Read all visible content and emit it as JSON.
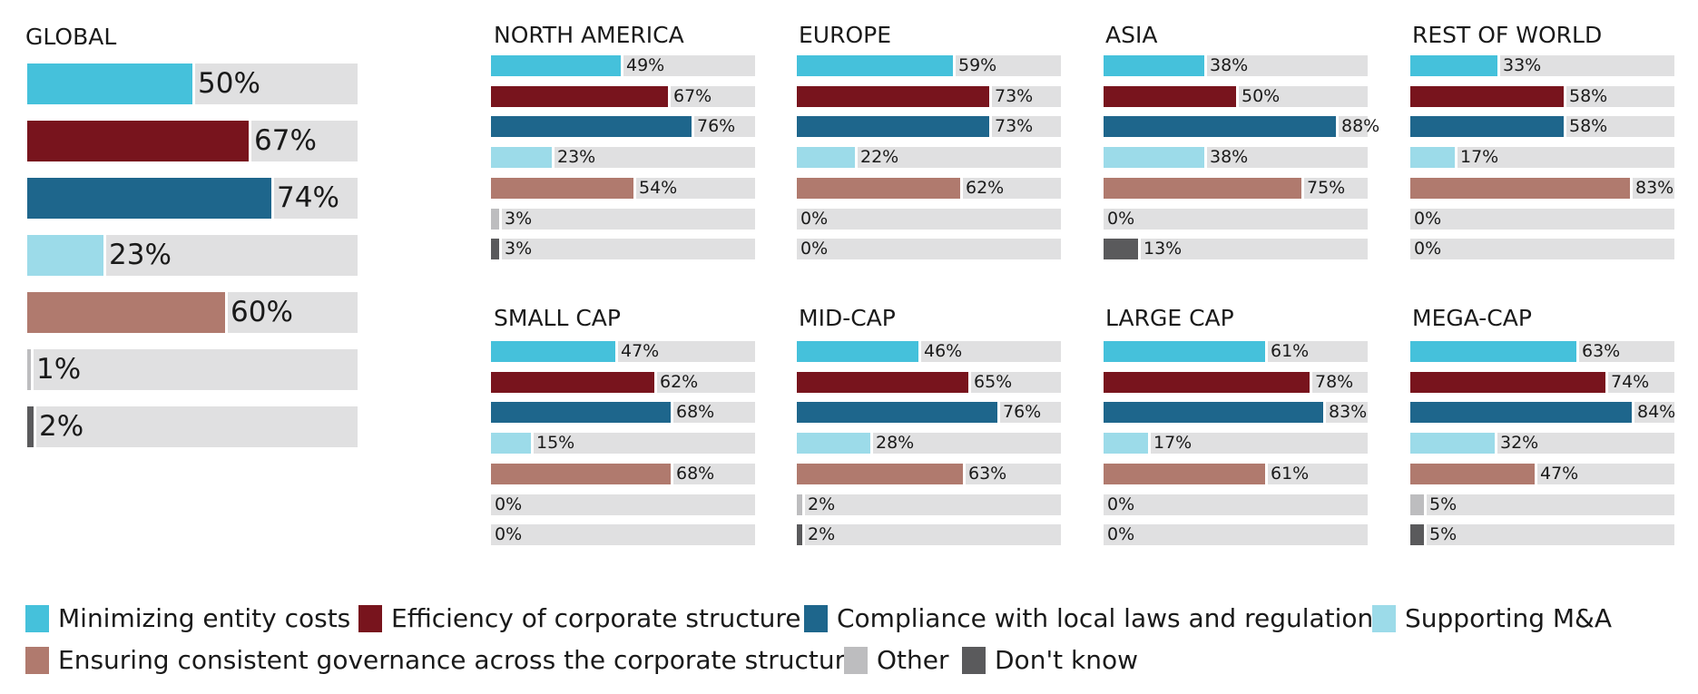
{
  "chart_data": [
    {
      "type": "bar",
      "title": "GLOBAL",
      "categories": [
        "Minimizing entity costs",
        "Efficiency of corporate structure",
        "Compliance with local laws and regulations",
        "Supporting M&A",
        "Ensuring consistent governance across the corporate structure",
        "Other",
        "Don't know"
      ],
      "values": [
        50,
        67,
        74,
        23,
        60,
        1,
        2
      ],
      "labels": [
        "50%",
        "67%",
        "74%",
        "23%",
        "60%",
        "1%",
        "2%"
      ],
      "xlim": [
        0,
        100
      ]
    },
    {
      "type": "bar",
      "title": "NORTH AMERICA",
      "categories": [
        "Minimizing entity costs",
        "Efficiency of corporate structure",
        "Compliance with local laws and regulations",
        "Supporting M&A",
        "Ensuring consistent governance across the corporate structure",
        "Other",
        "Don't know"
      ],
      "values": [
        49,
        67,
        76,
        23,
        54,
        3,
        3
      ],
      "labels": [
        "49%",
        "67%",
        "76%",
        "23%",
        "54%",
        "3%",
        "3%"
      ],
      "xlim": [
        0,
        100
      ]
    },
    {
      "type": "bar",
      "title": "EUROPE",
      "categories": [
        "Minimizing entity costs",
        "Efficiency of corporate structure",
        "Compliance with local laws and regulations",
        "Supporting M&A",
        "Ensuring consistent governance across the corporate structure",
        "Other",
        "Don't know"
      ],
      "values": [
        59,
        73,
        73,
        22,
        62,
        0,
        0
      ],
      "labels": [
        "59%",
        "73%",
        "73%",
        "22%",
        "62%",
        "0%",
        "0%"
      ],
      "xlim": [
        0,
        100
      ]
    },
    {
      "type": "bar",
      "title": "ASIA",
      "categories": [
        "Minimizing entity costs",
        "Efficiency of corporate structure",
        "Compliance with local laws and regulations",
        "Supporting M&A",
        "Ensuring consistent governance across the corporate structure",
        "Other",
        "Don't know"
      ],
      "values": [
        38,
        50,
        88,
        38,
        75,
        0,
        13
      ],
      "labels": [
        "38%",
        "50%",
        "88%",
        "38%",
        "75%",
        "0%",
        "13%"
      ],
      "xlim": [
        0,
        100
      ]
    },
    {
      "type": "bar",
      "title": "REST OF WORLD",
      "categories": [
        "Minimizing entity costs",
        "Efficiency of corporate structure",
        "Compliance with local laws and regulations",
        "Supporting M&A",
        "Ensuring consistent governance across the corporate structure",
        "Other",
        "Don't know"
      ],
      "values": [
        33,
        58,
        58,
        17,
        83,
        0,
        0
      ],
      "labels": [
        "33%",
        "58%",
        "58%",
        "17%",
        "83%",
        "0%",
        "0%"
      ],
      "xlim": [
        0,
        100
      ]
    },
    {
      "type": "bar",
      "title": "SMALL CAP",
      "categories": [
        "Minimizing entity costs",
        "Efficiency of corporate structure",
        "Compliance with local laws and regulations",
        "Supporting M&A",
        "Ensuring consistent governance across the corporate structure",
        "Other",
        "Don't know"
      ],
      "values": [
        47,
        62,
        68,
        15,
        68,
        0,
        0
      ],
      "labels": [
        "47%",
        "62%",
        "68%",
        "15%",
        "68%",
        "0%",
        "0%"
      ],
      "xlim": [
        0,
        100
      ]
    },
    {
      "type": "bar",
      "title": "MID-CAP",
      "categories": [
        "Minimizing entity costs",
        "Efficiency of corporate structure",
        "Compliance with local laws and regulations",
        "Supporting M&A",
        "Ensuring consistent governance across the corporate structure",
        "Other",
        "Don't know"
      ],
      "values": [
        46,
        65,
        76,
        28,
        63,
        2,
        2
      ],
      "labels": [
        "46%",
        "65%",
        "76%",
        "28%",
        "63%",
        "2%",
        "2%"
      ],
      "xlim": [
        0,
        100
      ]
    },
    {
      "type": "bar",
      "title": "LARGE CAP",
      "categories": [
        "Minimizing entity costs",
        "Efficiency of corporate structure",
        "Compliance with local laws and regulations",
        "Supporting M&A",
        "Ensuring consistent governance across the corporate structure",
        "Other",
        "Don't know"
      ],
      "values": [
        61,
        78,
        83,
        17,
        61,
        0,
        0
      ],
      "labels": [
        "61%",
        "78%",
        "83%",
        "17%",
        "61%",
        "0%",
        "0%"
      ],
      "xlim": [
        0,
        100
      ]
    },
    {
      "type": "bar",
      "title": "MEGA-CAP",
      "categories": [
        "Minimizing entity costs",
        "Efficiency of corporate structure",
        "Compliance with local laws and regulations",
        "Supporting M&A",
        "Ensuring consistent governance across the corporate structure",
        "Other",
        "Don't know"
      ],
      "values": [
        63,
        74,
        84,
        32,
        47,
        5,
        5
      ],
      "labels": [
        "63%",
        "74%",
        "84%",
        "32%",
        "47%",
        "5%",
        "5%"
      ],
      "xlim": [
        0,
        100
      ]
    }
  ],
  "colors": [
    "#45c1db",
    "#78141d",
    "#1e668c",
    "#9cdbe9",
    "#b07a6e",
    "#bdbdbf",
    "#5a5a5c"
  ],
  "track_color": "#e0e0e1",
  "legend": {
    "items": [
      {
        "label": "Minimizing entity costs",
        "color": "#45c1db"
      },
      {
        "label": "Efficiency of corporate structure",
        "color": "#78141d"
      },
      {
        "label": "Compliance with local laws and regulations",
        "color": "#1e668c"
      },
      {
        "label": "Supporting M&A",
        "color": "#9cdbe9"
      },
      {
        "label": "Ensuring consistent governance across the corporate structure",
        "color": "#b07a6e"
      },
      {
        "label": "Other",
        "color": "#bdbdbf"
      },
      {
        "label": "Don't know",
        "color": "#5a5a5c"
      }
    ]
  }
}
